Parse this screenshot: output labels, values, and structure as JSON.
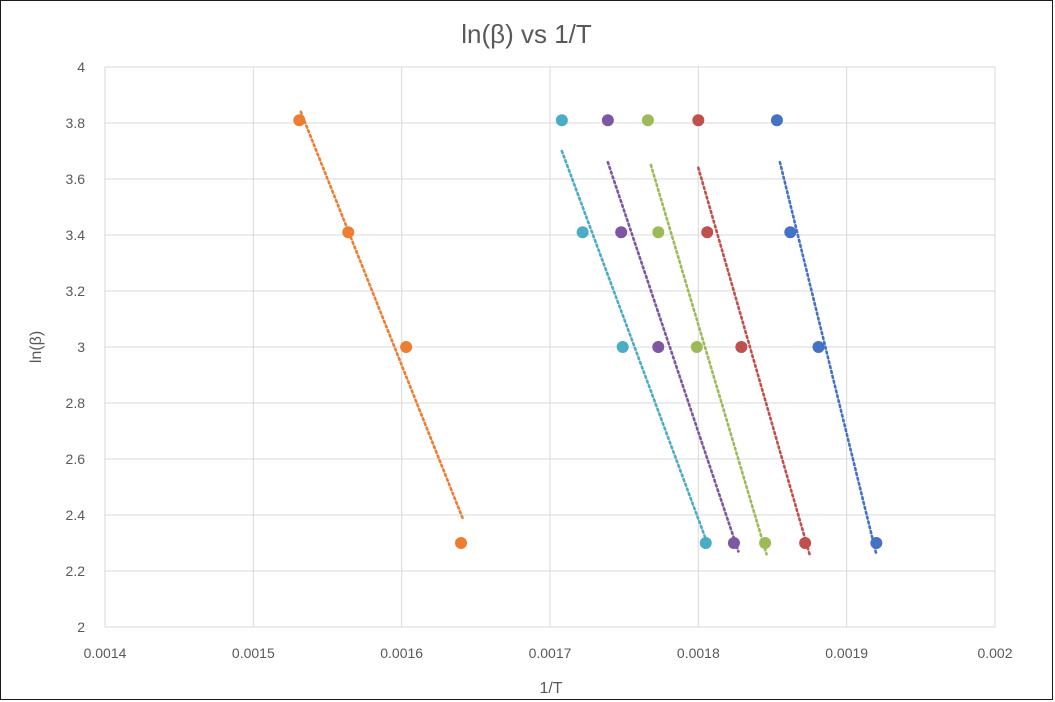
{
  "chart_data": {
    "type": "scatter",
    "title": "ln(β) vs 1/T",
    "xlabel": "1/T",
    "ylabel": "ln(β)",
    "xlim": [
      0.0014,
      0.002
    ],
    "ylim": [
      2,
      4
    ],
    "x_ticks": [
      "0.0014",
      "0.0015",
      "0.0016",
      "0.0017",
      "0.0018",
      "0.0019",
      "0.002"
    ],
    "y_ticks": [
      "2",
      "2.2",
      "2.4",
      "2.6",
      "2.8",
      "3",
      "3.2",
      "3.4",
      "3.6",
      "3.8",
      "4"
    ],
    "grid": true,
    "legend": "none",
    "trendline_style": "dotted linear",
    "series": [
      {
        "color": "#ED7D31",
        "points": [
          [
            0.001531,
            3.81
          ],
          [
            0.001564,
            3.41
          ],
          [
            0.001603,
            3.0
          ],
          [
            0.00164,
            2.3
          ]
        ],
        "trendline": [
          [
            0.001532,
            3.84
          ],
          [
            0.001641,
            2.39
          ]
        ]
      },
      {
        "color": "#4BACC6",
        "points": [
          [
            0.001708,
            3.81
          ],
          [
            0.001722,
            3.41
          ],
          [
            0.001749,
            3.0
          ],
          [
            0.001805,
            2.3
          ]
        ],
        "trendline": [
          [
            0.001708,
            3.7
          ],
          [
            0.001806,
            2.3
          ]
        ]
      },
      {
        "color": "#7E57A3",
        "points": [
          [
            0.001739,
            3.81
          ],
          [
            0.001748,
            3.41
          ],
          [
            0.001773,
            3.0
          ],
          [
            0.001824,
            2.3
          ]
        ],
        "trendline": [
          [
            0.001739,
            3.66
          ],
          [
            0.001827,
            2.27
          ]
        ]
      },
      {
        "color": "#9BBB59",
        "points": [
          [
            0.001766,
            3.81
          ],
          [
            0.001773,
            3.41
          ],
          [
            0.001799,
            3.0
          ],
          [
            0.001845,
            2.3
          ]
        ],
        "trendline": [
          [
            0.001768,
            3.65
          ],
          [
            0.001846,
            2.26
          ]
        ]
      },
      {
        "color": "#C0504D",
        "points": [
          [
            0.0018,
            3.81
          ],
          [
            0.001806,
            3.41
          ],
          [
            0.001829,
            3.0
          ],
          [
            0.001872,
            2.3
          ]
        ],
        "trendline": [
          [
            0.0018,
            3.64
          ],
          [
            0.001875,
            2.26
          ]
        ]
      },
      {
        "color": "#4472C4",
        "points": [
          [
            0.001853,
            3.81
          ],
          [
            0.001862,
            3.41
          ],
          [
            0.001881,
            3.0
          ],
          [
            0.00192,
            2.3
          ]
        ],
        "trendline": [
          [
            0.001855,
            3.66
          ],
          [
            0.00192,
            2.26
          ]
        ]
      }
    ]
  }
}
